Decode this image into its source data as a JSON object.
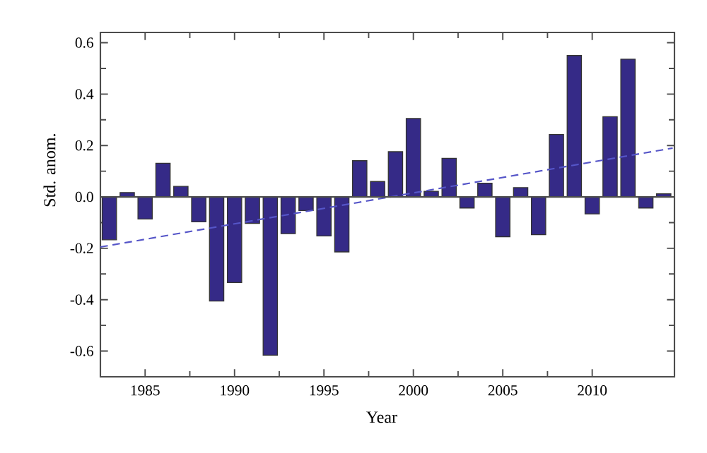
{
  "chart_data": {
    "type": "bar",
    "xlabel": "Year",
    "ylabel": "Std. anom.",
    "x": [
      1983,
      1984,
      1985,
      1986,
      1987,
      1988,
      1989,
      1990,
      1991,
      1992,
      1993,
      1994,
      1995,
      1996,
      1997,
      1998,
      1999,
      2000,
      2001,
      2002,
      2003,
      2004,
      2005,
      2006,
      2007,
      2008,
      2009,
      2010,
      2011,
      2012,
      2013,
      2014
    ],
    "series": [
      {
        "color": "#352a87",
        "values": [
          -0.167,
          0.017,
          -0.086,
          0.131,
          0.041,
          -0.097,
          -0.405,
          -0.333,
          -0.103,
          -0.616,
          -0.143,
          -0.053,
          -0.152,
          -0.214,
          0.141,
          0.06,
          0.176,
          0.305,
          0.022,
          0.15,
          -0.043,
          0.053,
          -0.155,
          0.036,
          -0.147,
          0.243,
          0.55,
          -0.066,
          0.312,
          0.536,
          -0.043,
          0.012
        ]
      },
      {
        "type": "line",
        "color": "#5555c8",
        "line_style": "dashed",
        "marker": "none",
        "x": [
          1982.5,
          2014.5
        ],
        "values": [
          -0.195,
          0.19
        ]
      }
    ],
    "xlim": [
      1982.5,
      2014.6
    ],
    "ylim": [
      -0.7,
      0.64
    ],
    "xticks": [
      1985,
      1990,
      1995,
      2000,
      2005,
      2010
    ],
    "yticks": [
      {
        "value": -0.6,
        "label": "-0.6"
      },
      {
        "value": -0.4,
        "label": "-0.4"
      },
      {
        "value": -0.2,
        "label": "-0.2"
      },
      {
        "value": 0,
        "label": "0.0"
      },
      {
        "value": 0.2,
        "label": "0.2"
      },
      {
        "value": 0.4,
        "label": "0.4"
      },
      {
        "value": 0.6,
        "label": "0.6"
      }
    ],
    "ref_lines": [
      {
        "axis": "y",
        "value": 0
      }
    ],
    "grid": false
  }
}
